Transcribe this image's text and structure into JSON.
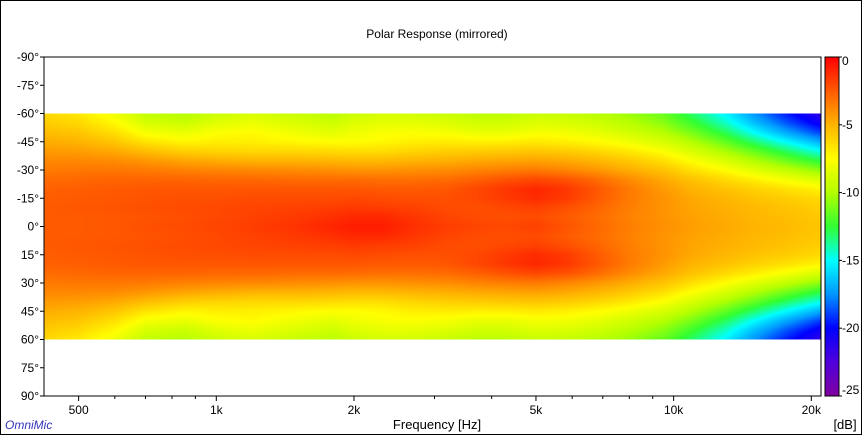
{
  "chart_data": {
    "type": "heatmap",
    "title": "Polar Response (mirrored)",
    "xlabel": "Frequency [Hz]",
    "x_scale": "log",
    "xlim": [
      420,
      21000
    ],
    "x_ticks": [
      {
        "value": 500,
        "label": "500"
      },
      {
        "value": 1000,
        "label": "1k"
      },
      {
        "value": 2000,
        "label": "2k"
      },
      {
        "value": 5000,
        "label": "5k"
      },
      {
        "value": 10000,
        "label": "10k"
      },
      {
        "value": 20000,
        "label": "20k"
      }
    ],
    "x_minor_ticks": [
      600,
      700,
      800,
      900,
      3000,
      4000,
      6000,
      7000,
      8000,
      9000
    ],
    "ylim": [
      -90,
      90
    ],
    "y_ticks": [
      {
        "value": -90,
        "label": "-90°"
      },
      {
        "value": -75,
        "label": "-75°"
      },
      {
        "value": -60,
        "label": "-60°"
      },
      {
        "value": -45,
        "label": "-45°"
      },
      {
        "value": -30,
        "label": "-30°"
      },
      {
        "value": -15,
        "label": "-15°"
      },
      {
        "value": 0,
        "label": "0°"
      },
      {
        "value": 15,
        "label": "15°"
      },
      {
        "value": 30,
        "label": "30°"
      },
      {
        "value": 45,
        "label": "45°"
      },
      {
        "value": 60,
        "label": "60°"
      },
      {
        "value": 75,
        "label": "75°"
      },
      {
        "value": 90,
        "label": "90°"
      }
    ],
    "data_angle_range": [
      -60,
      60
    ],
    "z_unit": "[dB]",
    "zlim": [
      -25,
      0
    ],
    "colorbar_ticks": [
      {
        "value": 0,
        "label": "0"
      },
      {
        "value": -5,
        "label": "-5"
      },
      {
        "value": -10,
        "label": "-10"
      },
      {
        "value": -15,
        "label": "-15"
      },
      {
        "value": -20,
        "label": "-20"
      },
      {
        "value": -25,
        "label": "-25"
      }
    ],
    "colormap": [
      {
        "value": 0,
        "color": "#ff0000"
      },
      {
        "value": -2.5,
        "color": "#ff5a00"
      },
      {
        "value": -5,
        "color": "#ffb400"
      },
      {
        "value": -7.5,
        "color": "#ffff00"
      },
      {
        "value": -10,
        "color": "#b4ff00"
      },
      {
        "value": -12.5,
        "color": "#32ff32"
      },
      {
        "value": -15,
        "color": "#00ffff"
      },
      {
        "value": -17.5,
        "color": "#0096ff"
      },
      {
        "value": -20,
        "color": "#0000ff"
      },
      {
        "value": -22.5,
        "color": "#5000dc"
      },
      {
        "value": -25,
        "color": "#8000a0"
      }
    ],
    "frequencies": [
      420,
      500,
      600,
      700,
      850,
      1000,
      1200,
      1500,
      1800,
      2000,
      2300,
      2700,
      3200,
      3700,
      4300,
      5000,
      5800,
      6800,
      8000,
      9500,
      11000,
      13000,
      15000,
      17500,
      21000
    ],
    "angles": [
      0,
      5,
      10,
      15,
      20,
      25,
      30,
      35,
      40,
      45,
      50,
      55,
      60
    ],
    "levels": [
      [
        -2.5,
        -2.5,
        -2.4,
        -2.2,
        -2.1,
        -1.9,
        -1.7,
        -1.4,
        -1.0,
        -0.8,
        -0.8,
        -1.3,
        -1.7,
        -1.9,
        -2.0,
        -1.8,
        -2.3,
        -2.9,
        -3.5,
        -4.0,
        -4.4,
        -4.7,
        -5.0,
        -5.2,
        -5.6
      ],
      [
        -2.5,
        -2.5,
        -2.4,
        -2.3,
        -2.2,
        -2.0,
        -1.8,
        -1.6,
        -1.3,
        -1.1,
        -1.1,
        -1.5,
        -1.9,
        -2.1,
        -2.2,
        -2.1,
        -2.5,
        -3.0,
        -3.6,
        -4.1,
        -4.5,
        -4.8,
        -5.1,
        -5.3,
        -5.7
      ],
      [
        -2.5,
        -2.4,
        -2.3,
        -2.2,
        -2.1,
        -2.0,
        -1.9,
        -1.8,
        -1.7,
        -1.6,
        -1.7,
        -1.8,
        -2.1,
        -2.2,
        -2.0,
        -1.8,
        -2.2,
        -2.8,
        -3.5,
        -4.1,
        -4.6,
        -4.9,
        -5.2,
        -5.5,
        -5.9
      ],
      [
        -2.6,
        -2.5,
        -2.4,
        -2.3,
        -2.2,
        -2.2,
        -2.1,
        -2.1,
        -2.1,
        -2.0,
        -2.1,
        -2.2,
        -2.2,
        -2.0,
        -1.6,
        -1.2,
        -1.6,
        -2.5,
        -3.4,
        -4.1,
        -4.7,
        -5.1,
        -5.5,
        -5.8,
        -6.3
      ],
      [
        -2.7,
        -2.6,
        -2.5,
        -2.4,
        -2.4,
        -2.4,
        -2.4,
        -2.4,
        -2.4,
        -2.4,
        -2.5,
        -2.5,
        -2.4,
        -2.0,
        -1.5,
        -1.1,
        -1.5,
        -2.4,
        -3.4,
        -4.3,
        -5.0,
        -5.5,
        -6.0,
        -6.5,
        -7.2
      ],
      [
        -3.0,
        -2.9,
        -2.8,
        -2.8,
        -2.8,
        -2.9,
        -2.9,
        -3.0,
        -3.0,
        -3.0,
        -3.1,
        -3.1,
        -3.0,
        -2.7,
        -2.3,
        -2.0,
        -2.3,
        -3.0,
        -3.9,
        -4.7,
        -5.5,
        -6.3,
        -7.0,
        -7.8,
        -8.8
      ],
      [
        -3.4,
        -3.3,
        -3.3,
        -3.4,
        -3.6,
        -3.7,
        -3.8,
        -3.9,
        -4.0,
        -4.1,
        -4.1,
        -4.0,
        -3.9,
        -3.7,
        -3.5,
        -3.4,
        -3.7,
        -4.2,
        -4.8,
        -5.5,
        -6.5,
        -7.5,
        -8.5,
        -9.5,
        -10.8
      ],
      [
        -3.8,
        -3.8,
        -3.9,
        -4.2,
        -4.6,
        -4.8,
        -5.0,
        -5.0,
        -5.1,
        -5.2,
        -5.2,
        -5.0,
        -4.9,
        -4.7,
        -4.6,
        -4.5,
        -4.7,
        -5.1,
        -5.7,
        -6.5,
        -7.6,
        -8.8,
        -10.0,
        -11.3,
        -12.8
      ],
      [
        -4.3,
        -4.4,
        -4.7,
        -5.3,
        -5.9,
        -6.1,
        -6.2,
        -6.2,
        -6.3,
        -6.4,
        -6.4,
        -6.1,
        -5.9,
        -5.8,
        -5.7,
        -5.6,
        -5.8,
        -6.2,
        -6.8,
        -7.6,
        -8.8,
        -10.2,
        -11.5,
        -13.0,
        -14.8
      ],
      [
        -4.8,
        -5.0,
        -5.6,
        -6.6,
        -7.2,
        -7.0,
        -7.0,
        -7.3,
        -7.5,
        -7.5,
        -7.3,
        -7.0,
        -6.9,
        -7.0,
        -7.0,
        -6.8,
        -7.0,
        -7.4,
        -8.0,
        -8.8,
        -10.0,
        -11.6,
        -13.2,
        -15.0,
        -17.0
      ],
      [
        -5.3,
        -5.6,
        -6.5,
        -7.8,
        -8.2,
        -7.6,
        -7.4,
        -8.0,
        -8.4,
        -8.0,
        -7.7,
        -7.6,
        -7.8,
        -8.2,
        -8.2,
        -7.8,
        -7.9,
        -8.3,
        -9.0,
        -9.9,
        -11.2,
        -13.0,
        -15.0,
        -17.0,
        -19.0
      ],
      [
        -5.8,
        -6.2,
        -7.3,
        -8.8,
        -9.2,
        -8.5,
        -8.1,
        -8.7,
        -9.1,
        -8.6,
        -8.3,
        -8.3,
        -8.6,
        -9.0,
        -9.0,
        -8.6,
        -8.7,
        -9.1,
        -9.8,
        -10.8,
        -12.3,
        -14.3,
        -16.5,
        -18.5,
        -20.5
      ],
      [
        -6.2,
        -6.8,
        -8.0,
        -9.5,
        -9.9,
        -9.2,
        -8.8,
        -9.3,
        -9.7,
        -9.2,
        -8.9,
        -9.0,
        -9.3,
        -9.7,
        -9.7,
        -9.3,
        -9.4,
        -9.8,
        -10.5,
        -11.5,
        -13.2,
        -15.3,
        -17.5,
        -19.5,
        -21.5
      ]
    ]
  },
  "brand": {
    "label": "OmniMic",
    "color": "#3333bb"
  }
}
